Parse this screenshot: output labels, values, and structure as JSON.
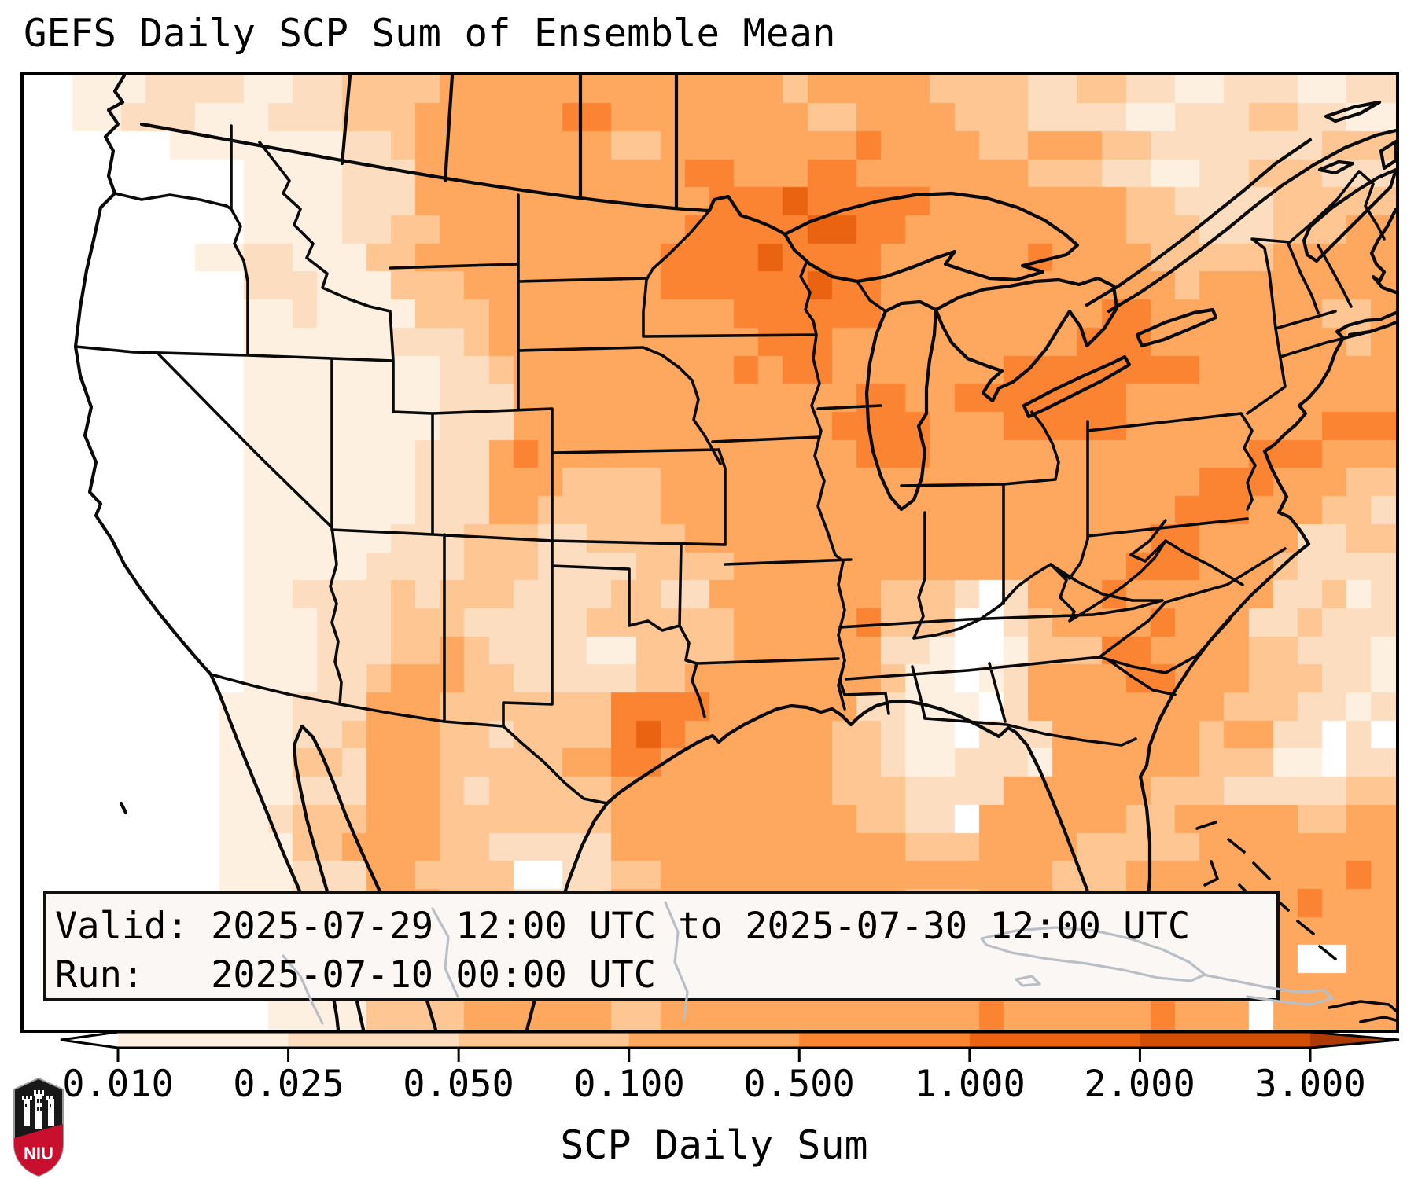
{
  "title": "GEFS Daily SCP Sum of Ensemble Mean",
  "info_box": {
    "line1": "Valid: 2025-07-29 12:00 UTC to 2025-07-30 12:00 UTC",
    "line2": "Run:   2025-07-10 00:00 UTC"
  },
  "logo": {
    "text": "NIU",
    "red": "#c8102e",
    "black": "#181818"
  },
  "chart_data": {
    "type": "heatmap",
    "title": "GEFS Daily SCP Sum of Ensemble Mean",
    "region_note": "pixelated SCP ensemble-mean field over North America with state/province borders",
    "colorbar": {
      "label": "SCP Daily Sum",
      "orientation": "horizontal",
      "extend": "both",
      "boundaries": [
        0.01,
        0.025,
        0.05,
        0.1,
        0.5,
        1.0,
        2.0,
        3.0
      ],
      "tick_labels": [
        "0.010",
        "0.025",
        "0.050",
        "0.100",
        "0.500",
        "1.000",
        "2.000",
        "3.000"
      ],
      "segment_colors": [
        "#fef0e1",
        "#fdddc0",
        "#fdc692",
        "#fda75f",
        "#fb8432",
        "#ea6311",
        "#d14f05"
      ],
      "under_color": "#ffffff",
      "over_color": "#ad3a02"
    },
    "grid": {
      "cols": 56,
      "rows": 34,
      "level_colors": [
        "#ffffff",
        "#fef0e1",
        "#fdddc0",
        "#fdc692",
        "#fda75f",
        "#fb8432",
        "#ea6311",
        "#d14f05"
      ],
      "rows_rle": [
        "0x2,1x3,2x4,1x2,2x2,3x4,4x14,3x1,4x5,3x4,2x2,3x2,2x2,1x2,2x3,1x2,2x2",
        "0x2,1x2,2x3,1x3,2x3,3x3,4x6,5x2,4x8,3x2,4x4,3x3,2x4,1x2,2x3,3x2,2x2,1x2",
        "0x6,1x3,1x4,2x2,3x1,4x4,4x4,3x2,4x2,4x6,5x1,4x4,3x2,4x3,3x2,2x3,2x4,3x3",
        "0x9,1x4,2x3,4x5,4x6,5x2,4x3,5x2,4x2,4x5,3x3,2x2,1x2,2x2,3x3,2x3",
        "0x9,1x4,2x3,4x5,4x5,4x2,5x3,6x1,5x2,5x3,4x4,4x4,3x2,2x2,2x2,3x2,3x3",
        "0x9,1x4,2x2,3x2,4x5,4x4,4x1,5x1,5x4,6x2,5x2,4x4,4x5,3x3,2x3,3x3,4x2",
        "0x7,1x2,2x2,1x3,3x2,4x2,4x4,4x4,5x2,5x2,6x1,5x1,5x3,4x4,4x2,5x1,4x4,3x3,3x2,4x1,4x4",
        "0x9,2x3,1x3,3x3,4x4,4x4,5x2,5x4,6x1,5x2,4x1,4x4,4x4,4x3,3x1,4x8",
        "0x9,1x2,2x1,1x4,3x3,4x4,4x4,4x2,5x1,5x3,5x2,4x4,4x3,4x2,5x2,4x3,4x4,3x2,4x1",
        "0x9,1x4,1x2,2x1,2x2,3x1,4x4,4x4,4x3,5x3,4x3,4x3,4x4,5x3,4x3,4x3,4x2,3x1,4x1",
        "0x9,1x4,1x4,2x2,3x1,4x4,4x4,4x1,5x1,4x1,5x2,4x1,4x3,4x3,5x1,5x3,5x4,4x3,4x5",
        "0x9,1x4,1x4,2x3,4x4,4x3,4x3,4x3,4x1,5x2,4x2,5x2,5x5,4x3,4x4,4x4",
        "0x9,1x4,1x4,2x3,4x3,4x4,4x3,4x3,5x3,5x1,4x3,5x5,4x3,4x4,4x1,5x3",
        "0x9,1x3,1x4,2x3,4x1,5x1,4x1,4x4,4x4,4x3,4x1,5x2,5x1,4x3,4x4,4x3,4x3,5x3,4x3",
        "0x9,1x4,1x3,2x3,4x3,3x4,4x4,4x4,4x3,4x4,4x4,4x3,5x3,4x3,3x2",
        "0x9,1x4,1x3,2x3,4x2,3x1,3x4,4x4,4x3,4x3,4x4,4x4,4x3,5x3,4x3,3x2,2x1",
        "0x9,1x3,1x3,2x3,3x3,2x2,3x2,3x2,4x2,4x3,4x3,4x4,4x4,4x3,5x2,4x1,4x3,2x2,3x2",
        "0x9,1x3,1x2,2x1,2x3,3x3,2x4,3x4,4x3,4x3,4x4,4x3,4x3,5x3,4x3,3x1,2x2,2x2",
        "0x9,1x2,2x1,2x3,3x1,2x1,3x3,2x4,3x2,2x2,4x3,4x4,3x3,2x1,0x1,2x1,4x3,5x1,4x3,4x3,2x2,3x1,1x1,2x1",
        "0x9,1x3,2x3,3x3,2x3,2x2,3x2,3x4,4x3,4x2,5x1,3x3,0x2,2x1,3x1,4x2,4x2,5x1,4x3,2x2,3x1,2x3",
        "0x9,1x3,2x3,3x2,4x1,3x1,2x2,2x2,1x2,3x4,4x3,4x3,2x2,1x1,0x2,1x1,3x3,5x2,4x1,4x3,3x2,2x1,2x2,1x1",
        "0x9,1x3,2x2,3x1,4x3,3x2,2x1,2x4,3x2,4x3,4x3,4x2,3x1,1x2,0x1,1x1,2x1,4x3,4x1,5x2,4x3,3x3,2x2,1x1",
        "0x8,1x3,2x3,4x3,3x3,3x4,5x3,5x1,4x2,4x4,2x2,1x1,1x2,0x1,2x1,4x2,4x3,4x3,3x3,2x2,1x1,2x1",
        "0x8,1x3,2x2,3x1,4x3,3x2,2x1,3x4,5x1,6x1,5x1,4x3,4x3,3x2,2x1,1x2,0x1,2x3,4x3,4x3,3x1,4x2,2x2,0x1,2x1,0x1,1x1",
        "0x8,1x3,3x2,2x1,4x3,3x3,3x2,4x2,5x2,4x1,4x3,4x3,3x2,2x1,1x2,2x1,2x2,1x1,4x3,4x3,3x3,1x2,0x1,2x2",
        "0x8,1x3,2x3,4x3,3x1,2x1,3x1,3x4,4x3,4x3,4x3,3x3,2x3,2x1,4x2,4x3,4x1,3x2,3x1,2x2,2x3,3x2",
        "0x8,1x2,2x1,3x3,4x3,3x3,3x4,4x4,4x4,4x2,3x2,2x2,0x1,4x3,4x3,3x2,4x1,4x4,3x2,4x2",
        "0x8,1x3,3x2,4x1,4x3,3x2,2x1,2x4,4x4,4x4,4x4,3x3,4x3,4x1,3x2,3x3,4x4,4x4",
        "0x8,1x3,2x3,4x2,3x1,3x3,0x2,2x2,3x2,4x2,4x4,4x4,4x3,4x3,3x3,4x3,4x4,4x2,5x1,4x1",
        "0x8,1x3,2x3,4x3,3x3,2x4,4x4,4x8,3x3,4x3,3x3,4x5,4x2,5x1,4x3",
        "0x8,1x3,2x3,4x3,3x3,2x4,4x4,4x8,3x3,4x3,4x3,4x5,5x1,4x5",
        "0x8,1x3,2x3,3x3,3x3,2x4,4x4,4x8,4x3,4x3,4x3,4x5,4x2,0x2,4x2",
        "0x8,1x3,2x3,3x3,2x3,3x4,4x4,4x8,4x3,4x3,4x3,5x1,4x3,0x2,4x5",
        "0x10,1x4,3x4,4x4,4x2,3x2,4x5,4x5,4x3,5x1,4x1,4x5,5x1,4x3,0x1,4x5"
      ]
    }
  }
}
